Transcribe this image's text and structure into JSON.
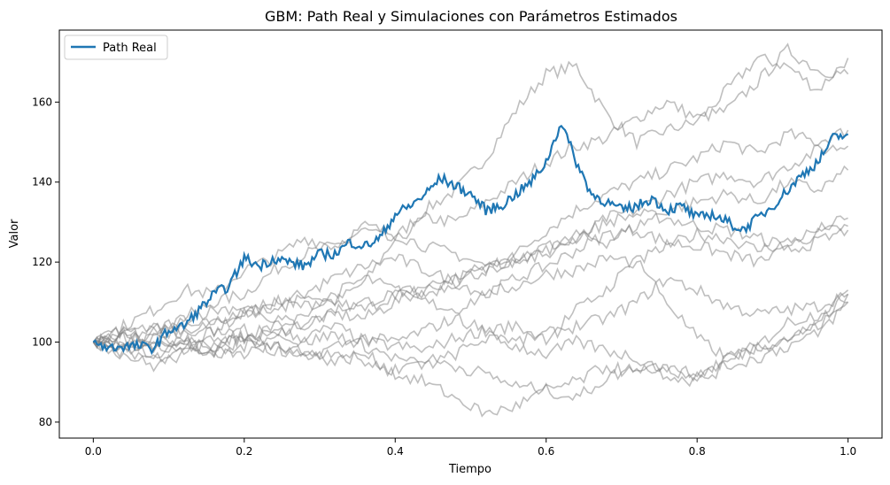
{
  "chart_data": {
    "type": "line",
    "title": "GBM: Path Real y Simulaciones con Parámetros Estimados",
    "xlabel": "Tiempo",
    "ylabel": "Valor",
    "xlim": [
      -0.045,
      1.045
    ],
    "ylim": [
      76,
      178
    ],
    "xticks": [
      0.0,
      0.2,
      0.4,
      0.6,
      0.8,
      1.0
    ],
    "xtick_labels": [
      "0.0",
      "0.2",
      "0.4",
      "0.6",
      "0.8",
      "1.0"
    ],
    "yticks": [
      80,
      100,
      120,
      140,
      160
    ],
    "ytick_labels": [
      "80",
      "100",
      "120",
      "140",
      "160"
    ],
    "grid": false,
    "legend": {
      "position": "top-left",
      "entries": [
        "Path Real"
      ]
    },
    "colors": {
      "real": "#1f77b4",
      "simulation": "#7f7f7f"
    },
    "series": [
      {
        "name": "Path Real",
        "role": "real",
        "x": [
          0.0,
          0.02,
          0.04,
          0.06,
          0.08,
          0.1,
          0.12,
          0.14,
          0.16,
          0.18,
          0.2,
          0.22,
          0.24,
          0.26,
          0.28,
          0.3,
          0.32,
          0.34,
          0.36,
          0.38,
          0.4,
          0.42,
          0.44,
          0.46,
          0.48,
          0.5,
          0.52,
          0.54,
          0.56,
          0.58,
          0.6,
          0.62,
          0.64,
          0.66,
          0.68,
          0.7,
          0.72,
          0.74,
          0.76,
          0.78,
          0.8,
          0.82,
          0.84,
          0.86,
          0.88,
          0.9,
          0.92,
          0.94,
          0.96,
          0.98,
          1.0
        ],
        "y": [
          100,
          98.5,
          99,
          99,
          98.5,
          103,
          104,
          108,
          112,
          114,
          121,
          119,
          121,
          120,
          119,
          122,
          122,
          125,
          124,
          126,
          132,
          134,
          137,
          141,
          139,
          137,
          133,
          134,
          137,
          140,
          145,
          155,
          145,
          137,
          135,
          133,
          134,
          136,
          133,
          134,
          131,
          132,
          130,
          128,
          131,
          134,
          138,
          142,
          145,
          151,
          152
        ]
      },
      {
        "role": "simulation",
        "x": [
          0.0,
          0.04,
          0.08,
          0.12,
          0.16,
          0.2,
          0.24,
          0.28,
          0.32,
          0.36,
          0.4,
          0.44,
          0.48,
          0.52,
          0.56,
          0.6,
          0.64,
          0.68,
          0.72,
          0.76,
          0.8,
          0.84,
          0.88,
          0.92,
          0.96,
          1.0
        ],
        "y": [
          100,
          102,
          104,
          103,
          105,
          107,
          110,
          112,
          110,
          115,
          126,
          133,
          138,
          146,
          158,
          167,
          169,
          157,
          150,
          153,
          155,
          163,
          171,
          169,
          163,
          171
        ]
      },
      {
        "role": "simulation",
        "x": [
          0.0,
          0.04,
          0.08,
          0.12,
          0.16,
          0.2,
          0.24,
          0.28,
          0.32,
          0.36,
          0.4,
          0.44,
          0.48,
          0.52,
          0.56,
          0.6,
          0.64,
          0.68,
          0.72,
          0.76,
          0.8,
          0.84,
          0.88,
          0.92,
          0.96,
          1.0
        ],
        "y": [
          100,
          103,
          101,
          106,
          110,
          112,
          118,
          122,
          124,
          128,
          125,
          131,
          130,
          135,
          140,
          145,
          149,
          151,
          156,
          160,
          156,
          158,
          165,
          173,
          168,
          167
        ]
      },
      {
        "role": "simulation",
        "x": [
          0.0,
          0.04,
          0.08,
          0.12,
          0.16,
          0.2,
          0.24,
          0.28,
          0.32,
          0.36,
          0.4,
          0.44,
          0.48,
          0.52,
          0.56,
          0.6,
          0.64,
          0.68,
          0.72,
          0.76,
          0.8,
          0.84,
          0.88,
          0.92,
          0.96,
          1.0
        ],
        "y": [
          100,
          98,
          102,
          100,
          103,
          101,
          104,
          106,
          110,
          108,
          112,
          114,
          116,
          119,
          122,
          128,
          133,
          137,
          140,
          143,
          146,
          150,
          147,
          152,
          150,
          153
        ]
      },
      {
        "role": "simulation",
        "x": [
          0.0,
          0.04,
          0.08,
          0.12,
          0.16,
          0.2,
          0.24,
          0.28,
          0.32,
          0.36,
          0.4,
          0.44,
          0.48,
          0.52,
          0.56,
          0.6,
          0.64,
          0.68,
          0.72,
          0.76,
          0.8,
          0.84,
          0.88,
          0.92,
          0.96,
          1.0
        ],
        "y": [
          100,
          99,
          98,
          101,
          99,
          103,
          102,
          105,
          107,
          106,
          110,
          113,
          116,
          118,
          121,
          124,
          125,
          131,
          133,
          137,
          140,
          142,
          140,
          144,
          148,
          149
        ]
      },
      {
        "role": "simulation",
        "x": [
          0.0,
          0.04,
          0.08,
          0.12,
          0.16,
          0.2,
          0.24,
          0.28,
          0.32,
          0.36,
          0.4,
          0.44,
          0.48,
          0.52,
          0.56,
          0.6,
          0.64,
          0.68,
          0.72,
          0.76,
          0.8,
          0.84,
          0.88,
          0.92,
          0.96,
          1.0
        ],
        "y": [
          100,
          104,
          108,
          113,
          112,
          118,
          121,
          126,
          124,
          129,
          127,
          124,
          122,
          119,
          121,
          123,
          126,
          130,
          132,
          131,
          129,
          128,
          126,
          124,
          127,
          129
        ]
      },
      {
        "role": "simulation",
        "x": [
          0.0,
          0.04,
          0.08,
          0.12,
          0.16,
          0.2,
          0.24,
          0.28,
          0.32,
          0.36,
          0.4,
          0.44,
          0.48,
          0.52,
          0.56,
          0.6,
          0.64,
          0.68,
          0.72,
          0.76,
          0.8,
          0.84,
          0.88,
          0.92,
          0.96,
          1.0
        ],
        "y": [
          100,
          97,
          101,
          104,
          103,
          107,
          110,
          109,
          112,
          116,
          113,
          112,
          115,
          118,
          120,
          122,
          127,
          125,
          129,
          133,
          135,
          137,
          135,
          140,
          138,
          143
        ]
      },
      {
        "role": "simulation",
        "x": [
          0.0,
          0.04,
          0.08,
          0.12,
          0.16,
          0.2,
          0.24,
          0.28,
          0.32,
          0.36,
          0.4,
          0.44,
          0.48,
          0.52,
          0.56,
          0.6,
          0.64,
          0.68,
          0.72,
          0.76,
          0.8,
          0.84,
          0.88,
          0.92,
          0.96,
          1.0
        ],
        "y": [
          100,
          101,
          103,
          106,
          108,
          109,
          107,
          112,
          116,
          119,
          121,
          118,
          115,
          112,
          116,
          119,
          123,
          127,
          128,
          125,
          124,
          122,
          120,
          123,
          125,
          128
        ]
      },
      {
        "role": "simulation",
        "x": [
          0.0,
          0.04,
          0.08,
          0.12,
          0.16,
          0.2,
          0.24,
          0.28,
          0.32,
          0.36,
          0.4,
          0.44,
          0.48,
          0.52,
          0.56,
          0.6,
          0.64,
          0.68,
          0.72,
          0.76,
          0.8,
          0.84,
          0.88,
          0.92,
          0.96,
          1.0
        ],
        "y": [
          100,
          99,
          103,
          102,
          105,
          108,
          106,
          104,
          108,
          110,
          112,
          110,
          108,
          112,
          114,
          117,
          118,
          121,
          120,
          124,
          127,
          126,
          123,
          125,
          128,
          131
        ]
      },
      {
        "role": "simulation",
        "x": [
          0.0,
          0.04,
          0.08,
          0.12,
          0.16,
          0.2,
          0.24,
          0.28,
          0.32,
          0.36,
          0.4,
          0.44,
          0.48,
          0.52,
          0.56,
          0.6,
          0.64,
          0.68,
          0.72,
          0.76,
          0.8,
          0.84,
          0.88,
          0.92,
          0.96,
          1.0
        ],
        "y": [
          100,
          102,
          99,
          98,
          101,
          100,
          103,
          101,
          104,
          100,
          99,
          98,
          101,
          103,
          100,
          102,
          104,
          106,
          110,
          116,
          113,
          109,
          107,
          108,
          109,
          112
        ]
      },
      {
        "role": "simulation",
        "x": [
          0.0,
          0.04,
          0.08,
          0.12,
          0.16,
          0.2,
          0.24,
          0.28,
          0.32,
          0.36,
          0.4,
          0.44,
          0.48,
          0.52,
          0.56,
          0.6,
          0.64,
          0.68,
          0.72,
          0.76,
          0.8,
          0.84,
          0.88,
          0.92,
          0.96,
          1.0
        ],
        "y": [
          100,
          98,
          96,
          99,
          97,
          101,
          99,
          96,
          99,
          101,
          100,
          103,
          106,
          103,
          104,
          101,
          108,
          113,
          121,
          110,
          101,
          96,
          99,
          105,
          107,
          112
        ]
      },
      {
        "role": "simulation",
        "x": [
          0.0,
          0.04,
          0.08,
          0.12,
          0.16,
          0.2,
          0.24,
          0.28,
          0.32,
          0.36,
          0.4,
          0.44,
          0.48,
          0.52,
          0.56,
          0.6,
          0.64,
          0.68,
          0.72,
          0.76,
          0.8,
          0.84,
          0.88,
          0.92,
          0.96,
          1.0
        ],
        "y": [
          100,
          97,
          94,
          97,
          99,
          101,
          98,
          100,
          102,
          99,
          96,
          94,
          97,
          101,
          99,
          97,
          100,
          98,
          96,
          93,
          92,
          95,
          99,
          101,
          104,
          110
        ]
      },
      {
        "role": "simulation",
        "x": [
          0.0,
          0.04,
          0.08,
          0.12,
          0.16,
          0.2,
          0.24,
          0.28,
          0.32,
          0.36,
          0.4,
          0.44,
          0.48,
          0.52,
          0.56,
          0.6,
          0.64,
          0.68,
          0.72,
          0.76,
          0.8,
          0.84,
          0.88,
          0.92,
          0.96,
          1.0
        ],
        "y": [
          100,
          99,
          97,
          100,
          96,
          99,
          102,
          98,
          95,
          97,
          92,
          90,
          86,
          82,
          84,
          88,
          90,
          94,
          92,
          94,
          91,
          96,
          98,
          101,
          104,
          113
        ]
      },
      {
        "role": "simulation",
        "x": [
          0.0,
          0.04,
          0.08,
          0.12,
          0.16,
          0.2,
          0.24,
          0.28,
          0.32,
          0.36,
          0.4,
          0.44,
          0.48,
          0.52,
          0.56,
          0.6,
          0.64,
          0.68,
          0.72,
          0.76,
          0.8,
          0.84,
          0.88,
          0.92,
          0.96,
          1.0
        ],
        "y": [
          100,
          101,
          98,
          100,
          98,
          97,
          99,
          96,
          98,
          95,
          93,
          96,
          94,
          92,
          89,
          88,
          86,
          91,
          94,
          92,
          90,
          94,
          96,
          99,
          102,
          110
        ]
      }
    ]
  }
}
